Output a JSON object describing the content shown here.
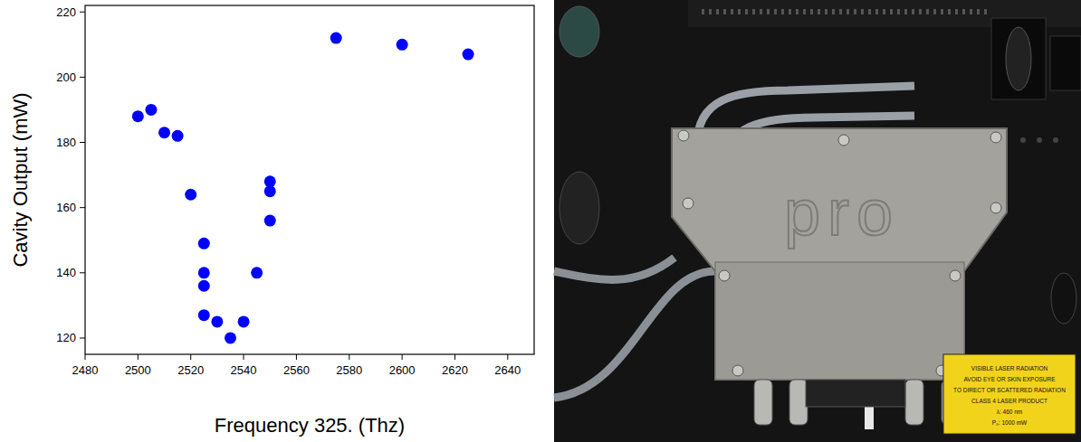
{
  "chart_data": {
    "type": "scatter",
    "x_label": "Frequency 325. (Thz)",
    "y_label": "Cavity Output (mW)",
    "x": [
      2500,
      2505,
      2510,
      2515,
      2520,
      2525,
      2525,
      2525,
      2525,
      2530,
      2535,
      2540,
      2545,
      2550,
      2550,
      2550,
      2575,
      2600,
      2625
    ],
    "values": [
      188,
      190,
      183,
      182,
      164,
      149,
      140,
      136,
      127,
      125,
      120,
      125,
      140,
      168,
      165,
      156,
      212,
      210,
      207
    ],
    "color": "#0000ff",
    "marker": "circle",
    "xlim": [
      2480,
      2650
    ],
    "xticks": [
      2480,
      2500,
      2520,
      2540,
      2560,
      2580,
      2600,
      2620,
      2640
    ],
    "ylim": [
      115,
      222
    ],
    "yticks": [
      120,
      140,
      160,
      180,
      200,
      220
    ],
    "grid": false
  },
  "photo": {
    "device_text": "pro",
    "warning_label": [
      "VISIBLE LASER RADIATION",
      "AVOID EYE OR SKIN EXPOSURE",
      "TO DIRECT OR SCATTERED RADIATION",
      "CLASS 4 LASER PRODUCT",
      "λ: 460 nm",
      "P₀: 1000 mW"
    ]
  }
}
